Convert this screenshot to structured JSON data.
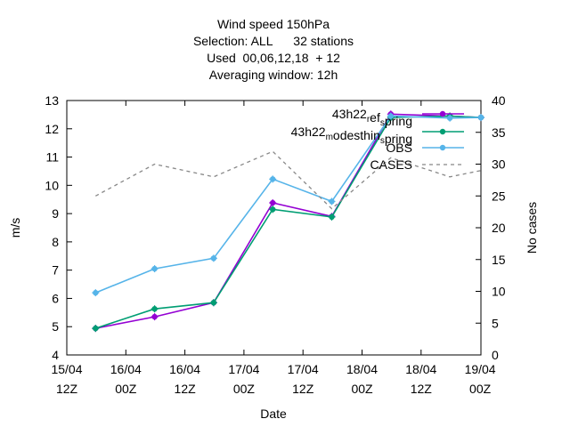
{
  "chart_data": {
    "type": "line",
    "title_lines": [
      "Wind speed 150hPa",
      "Selection: ALL      32 stations",
      "Used  00,06,12,18  + 12",
      "Averaging window: 12h"
    ],
    "xlabel": "Date",
    "ylabel": "m/s",
    "y2label": "No cases",
    "ylim": [
      4,
      13
    ],
    "y2lim": [
      0,
      40
    ],
    "yticks": [
      "4",
      "5",
      "6",
      "7",
      "8",
      "9",
      "10",
      "11",
      "12",
      "13"
    ],
    "y2ticks": [
      "0",
      "5",
      "10",
      "15",
      "20",
      "25",
      "30",
      "35",
      "40"
    ],
    "xticks": [
      {
        "top": "15/04",
        "bottom": "12Z"
      },
      {
        "top": "16/04",
        "bottom": "00Z"
      },
      {
        "top": "16/04",
        "bottom": "12Z"
      },
      {
        "top": "17/04",
        "bottom": "00Z"
      },
      {
        "top": "17/04",
        "bottom": "12Z"
      },
      {
        "top": "18/04",
        "bottom": "00Z"
      },
      {
        "top": "18/04",
        "bottom": "12Z"
      },
      {
        "top": "19/04",
        "bottom": "00Z"
      }
    ],
    "x": [
      "15/04 18Z",
      "16/04 06Z",
      "16/04 18Z",
      "17/04 06Z",
      "17/04 18Z",
      "18/04 06Z",
      "18/04 18Z",
      "19/04 00Z"
    ],
    "legend_position": "top-right",
    "series": [
      {
        "name": "43h22_refspring",
        "legend_parts": [
          [
            "43h22",
            "base"
          ],
          [
            "r",
            "sub"
          ],
          [
            "ef",
            "base"
          ],
          [
            "s",
            "sub"
          ],
          [
            "pring",
            "base"
          ]
        ],
        "color": "#9400d3",
        "axis": "y",
        "values": [
          4.94,
          5.35,
          5.85,
          9.38,
          8.9,
          12.52,
          12.45,
          12.4
        ],
        "point_at": [
          0,
          1,
          2,
          3,
          4,
          5,
          6,
          7
        ]
      },
      {
        "name": "43h22_modesthin_spring",
        "legend_parts": [
          [
            "43h22",
            "base"
          ],
          [
            "m",
            "sub"
          ],
          [
            "odesthin",
            "base"
          ],
          [
            "s",
            "sub"
          ],
          [
            "pring",
            "base"
          ]
        ],
        "color": "#009e73",
        "axis": "y",
        "values": [
          4.94,
          5.63,
          5.85,
          9.15,
          8.88,
          12.4,
          12.45,
          12.4
        ],
        "point_at": [
          0,
          1,
          2,
          3,
          4,
          5,
          6,
          7
        ]
      },
      {
        "name": "OBS",
        "legend_parts": [
          [
            "OBS",
            "base"
          ]
        ],
        "color": "#56b4e9",
        "axis": "y",
        "values": [
          6.2,
          7.05,
          7.42,
          10.22,
          9.43,
          12.45,
          12.38,
          12.4
        ],
        "point_at": [
          0,
          1,
          2,
          3,
          4,
          5,
          6,
          7
        ]
      },
      {
        "name": "CASES",
        "legend_parts": [
          [
            "CASES",
            "base"
          ]
        ],
        "color": "#888888",
        "axis": "y2",
        "dashed": true,
        "values": [
          25,
          30,
          28,
          32,
          23,
          31,
          28,
          29
        ],
        "point_at": []
      }
    ]
  }
}
